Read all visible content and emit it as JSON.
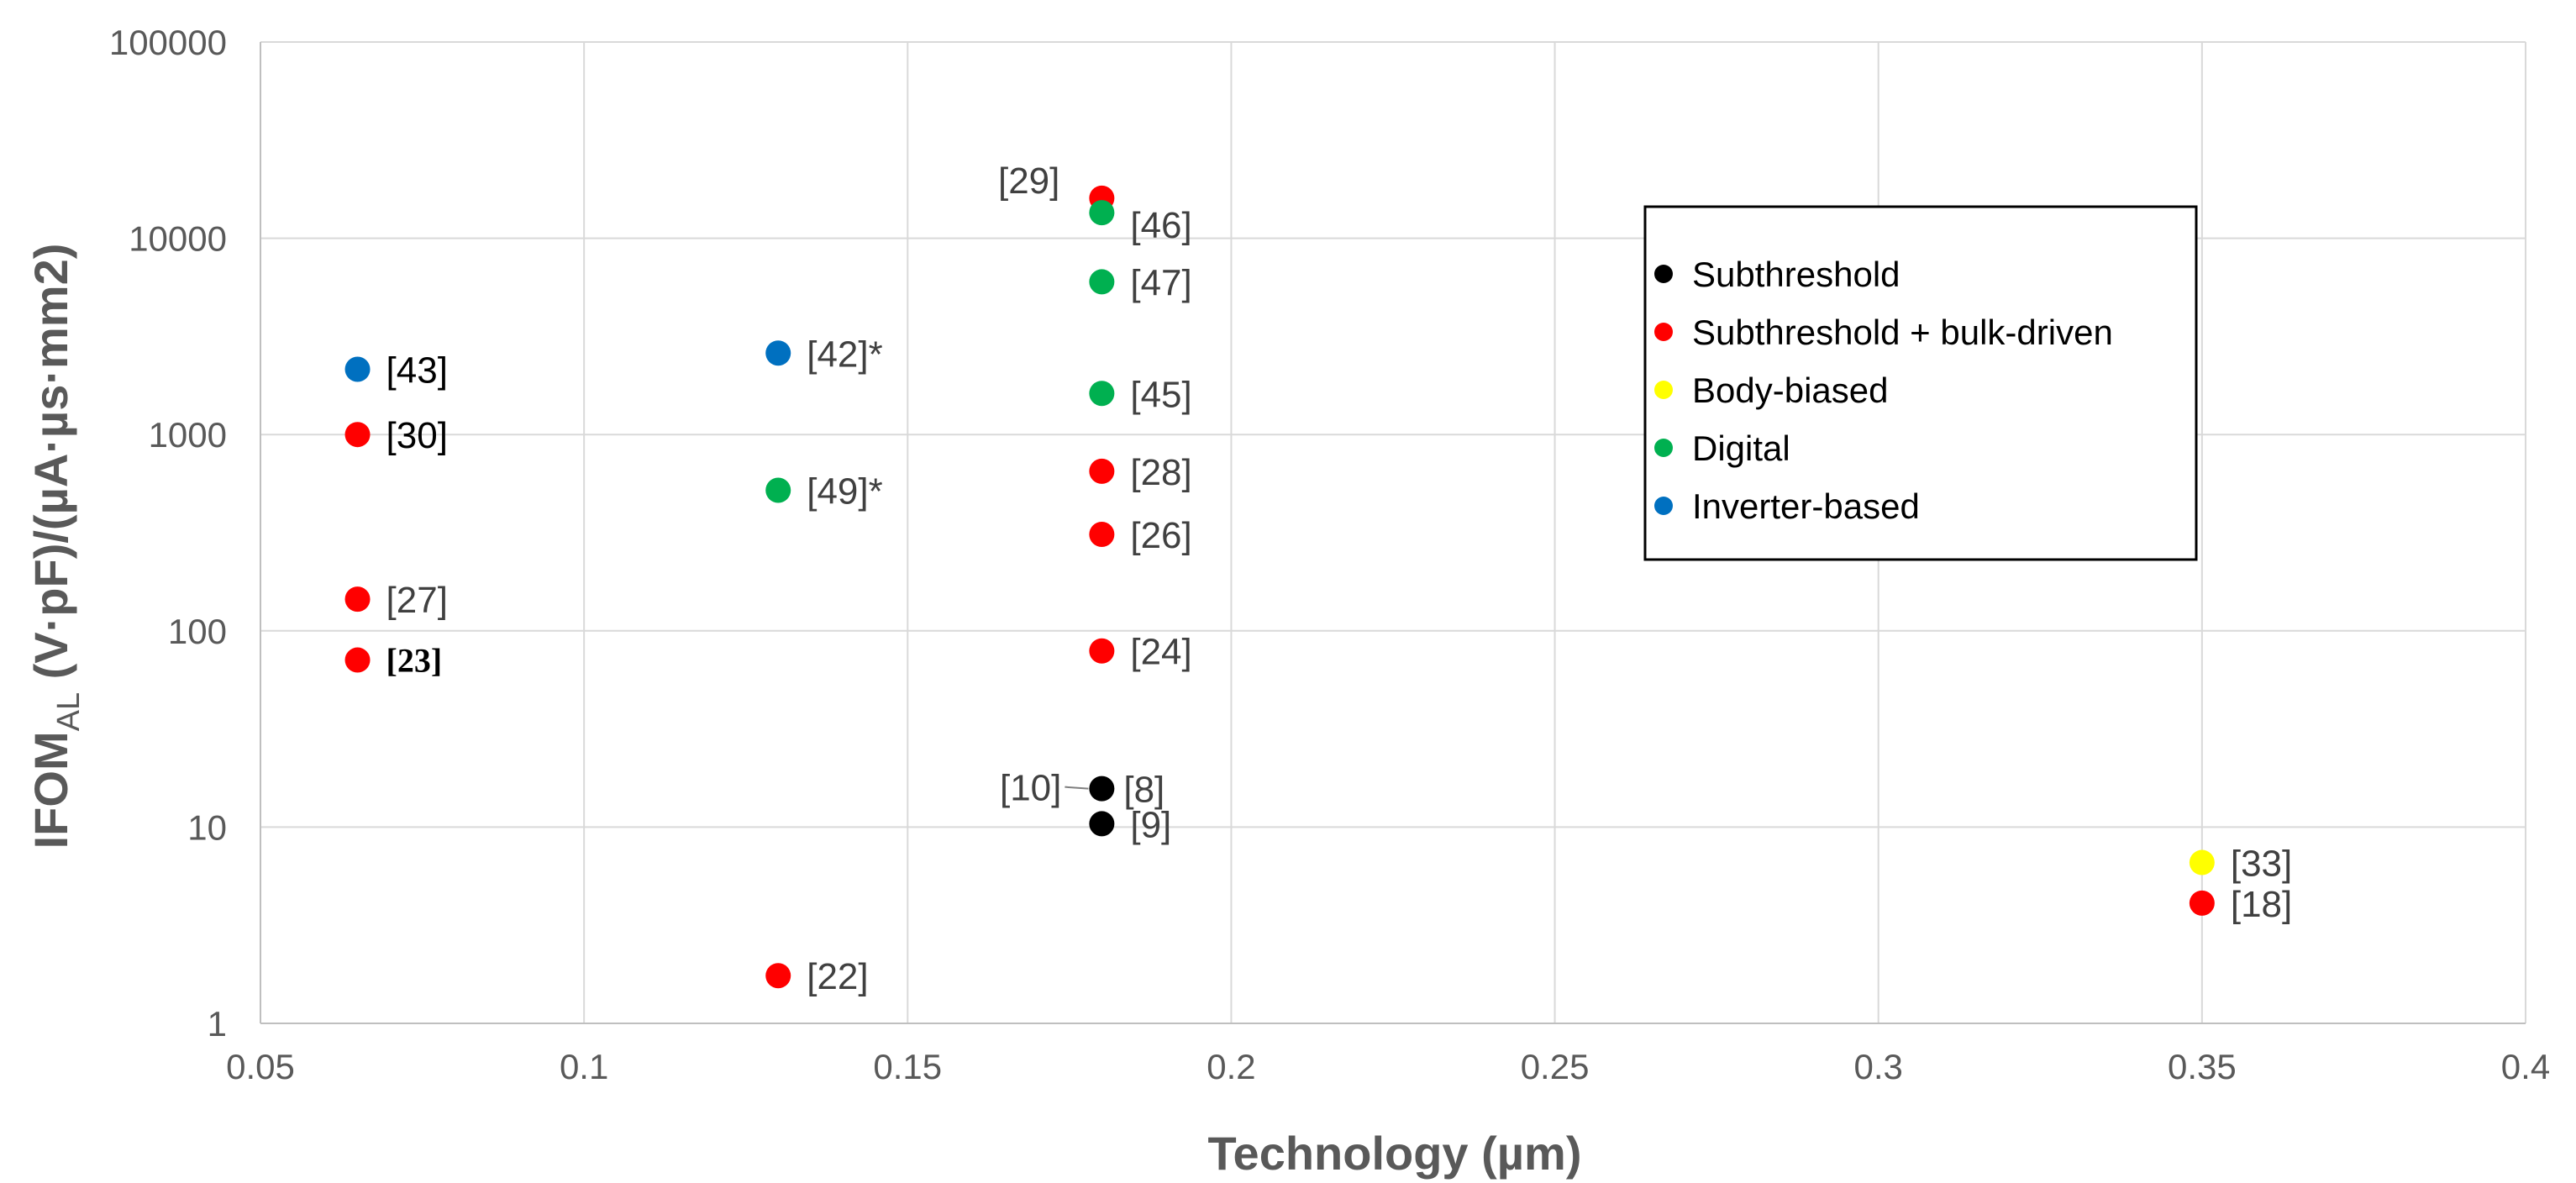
{
  "chart_data": {
    "type": "scatter",
    "xlabel": "Technology (µm)",
    "ylabel_main": "IFOM",
    "ylabel_sub": "AL",
    "ylabel_rest": " (V·pF)/(µA·µs·mm2)",
    "xlim": [
      0.05,
      0.4
    ],
    "ylim": [
      1,
      100000
    ],
    "yscale": "log",
    "grid": true,
    "x_ticks": [
      "0.05",
      "0.1",
      "0.15",
      "0.2",
      "0.25",
      "0.3",
      "0.35",
      "0.4"
    ],
    "y_ticks": [
      "1",
      "10",
      "100",
      "1000",
      "10000",
      "100000"
    ],
    "legend_position": "upper-right-inside",
    "series": [
      {
        "name": "Subthreshold",
        "color": "#000000",
        "points": [
          {
            "x": 0.18,
            "y": 15.7,
            "label": "[8]"
          },
          {
            "x": 0.18,
            "y": 10.4,
            "label": "[9]"
          }
        ]
      },
      {
        "name": "Subthreshold + bulk-driven",
        "color": "#ff0000",
        "points": [
          {
            "x": 0.065,
            "y": 1000,
            "label": "[30]"
          },
          {
            "x": 0.065,
            "y": 145,
            "label": "[27]"
          },
          {
            "x": 0.065,
            "y": 71,
            "label": "[23]"
          },
          {
            "x": 0.13,
            "y": 1.75,
            "label": "[22]"
          },
          {
            "x": 0.18,
            "y": 16000,
            "label": "[29]"
          },
          {
            "x": 0.18,
            "y": 650,
            "label": "[28]"
          },
          {
            "x": 0.18,
            "y": 310,
            "label": "[26]"
          },
          {
            "x": 0.18,
            "y": 79,
            "label": "[24]"
          },
          {
            "x": 0.35,
            "y": 4.1,
            "label": "[18]"
          }
        ]
      },
      {
        "name": "Body-biased",
        "color": "#ffff00",
        "points": [
          {
            "x": 0.35,
            "y": 6.6,
            "label": "[33]"
          }
        ]
      },
      {
        "name": "Digital",
        "color": "#00b050",
        "points": [
          {
            "x": 0.13,
            "y": 520,
            "label": "[49]*"
          },
          {
            "x": 0.18,
            "y": 13500,
            "label": "[46]"
          },
          {
            "x": 0.18,
            "y": 6000,
            "label": "[47]"
          },
          {
            "x": 0.18,
            "y": 1620,
            "label": "[45]"
          }
        ]
      },
      {
        "name": "Inverter-based",
        "color": "#0070c0",
        "points": [
          {
            "x": 0.065,
            "y": 2150,
            "label": "[43]"
          },
          {
            "x": 0.13,
            "y": 2600,
            "label": "[42]*"
          }
        ]
      }
    ],
    "annotations": [
      {
        "text": "[10]",
        "x": 0.18,
        "y": 15.7
      }
    ]
  }
}
